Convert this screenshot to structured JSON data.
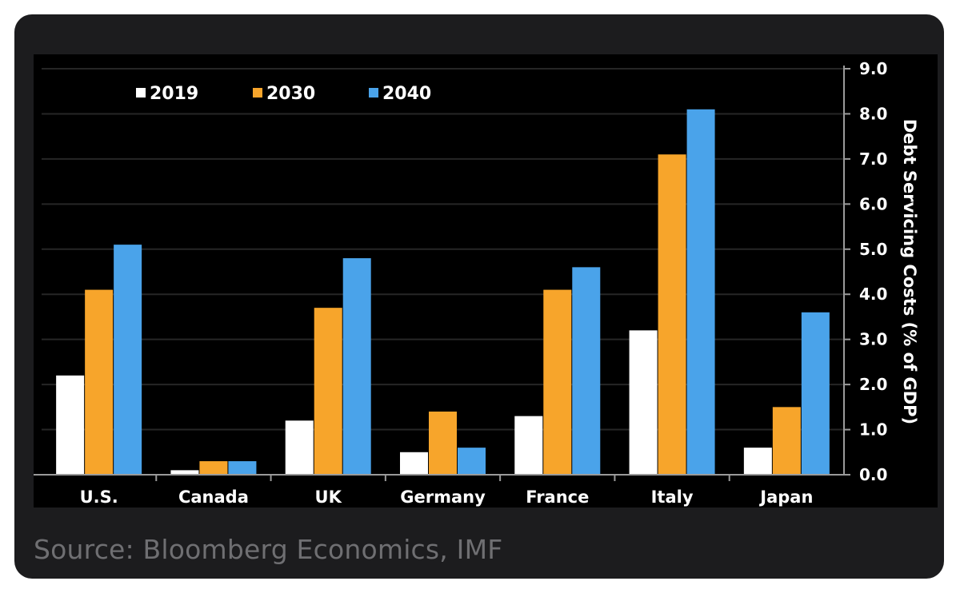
{
  "chart_data": {
    "type": "bar",
    "categories": [
      "U.S.",
      "Canada",
      "UK",
      "Germany",
      "France",
      "Italy",
      "Japan"
    ],
    "series": [
      {
        "name": "2019",
        "color": "#ffffff",
        "values": [
          2.2,
          0.1,
          1.2,
          0.5,
          1.3,
          3.2,
          0.6
        ]
      },
      {
        "name": "2030",
        "color": "#f7a52b",
        "values": [
          4.1,
          0.3,
          3.7,
          1.4,
          4.1,
          7.1,
          1.5
        ]
      },
      {
        "name": "2040",
        "color": "#4aa3ea",
        "values": [
          5.1,
          0.3,
          4.8,
          0.6,
          4.6,
          8.1,
          3.6
        ]
      }
    ],
    "ylabel": "Debt Servicing Costs (% of GDP)",
    "ylim": [
      0,
      9
    ],
    "yticks": [
      "0.0",
      "1.0",
      "2.0",
      "3.0",
      "4.0",
      "5.0",
      "6.0",
      "7.0",
      "8.0",
      "9.0"
    ],
    "y_axis_side": "right",
    "grid": true,
    "legend_position": "top-left"
  },
  "source_text": "Source: Bloomberg Economics, IMF"
}
